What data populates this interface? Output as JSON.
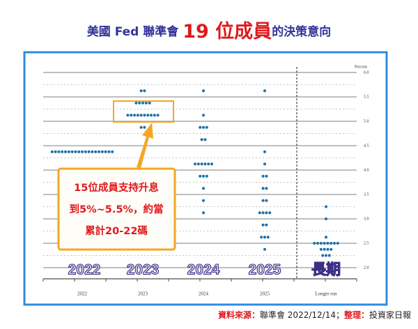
{
  "header": {
    "title_parts": [
      "美國 Fed 聯準會 ",
      "19 位成員",
      "的決策意向"
    ]
  },
  "chart_data": {
    "type": "dot",
    "y_label": "Percent",
    "categories": [
      "2022",
      "2023",
      "2024",
      "2025",
      "Longer run"
    ],
    "dots": [
      {
        "levels": [
          4.375
        ],
        "counts": [
          19
        ]
      },
      {
        "levels": [
          5.625,
          5.375,
          5.125,
          4.875
        ],
        "counts": [
          2,
          5,
          10,
          2
        ]
      },
      {
        "levels": [
          5.625,
          5.125,
          4.875,
          4.625,
          4.125,
          3.875,
          3.625,
          3.375,
          3.125
        ],
        "counts": [
          1,
          1,
          3,
          2,
          6,
          3,
          1,
          1,
          1
        ]
      },
      {
        "levels": [
          5.625,
          4.375,
          4.125,
          3.875,
          3.625,
          3.375,
          3.125,
          2.875,
          2.625,
          2.375
        ],
        "counts": [
          1,
          1,
          1,
          2,
          2,
          2,
          4,
          2,
          3,
          1
        ]
      },
      {
        "levels": [
          3.25,
          3.0,
          2.625,
          2.5,
          2.375,
          2.25
        ],
        "counts": [
          1,
          1,
          1,
          8,
          4,
          3
        ]
      }
    ],
    "color": "#1f6fa6",
    "ylim": [
      2,
      6
    ],
    "yticks": [
      {
        "value": 2,
        "label": "2.0"
      },
      2.5,
      {
        "value": 3,
        "label": "3.0"
      },
      3.5,
      {
        "value": 4,
        "label": "4.0"
      },
      4.5,
      {
        "value": 5,
        "label": "5.0"
      },
      5.5,
      {
        "value": 6,
        "label": "6.0"
      }
    ],
    "grid": true,
    "overlay_labels": [
      "2022",
      "2023",
      "2024",
      "2025",
      "長期"
    ]
  },
  "callout": {
    "lines": [
      "15位成員支持升息",
      "到5%~5.5%，約當",
      "累計20-22碼"
    ]
  },
  "source": {
    "label": "資料來源：",
    "text": "聯準會 2022/12/14；",
    "label2": "整理：",
    "text2": "投資家日報"
  }
}
